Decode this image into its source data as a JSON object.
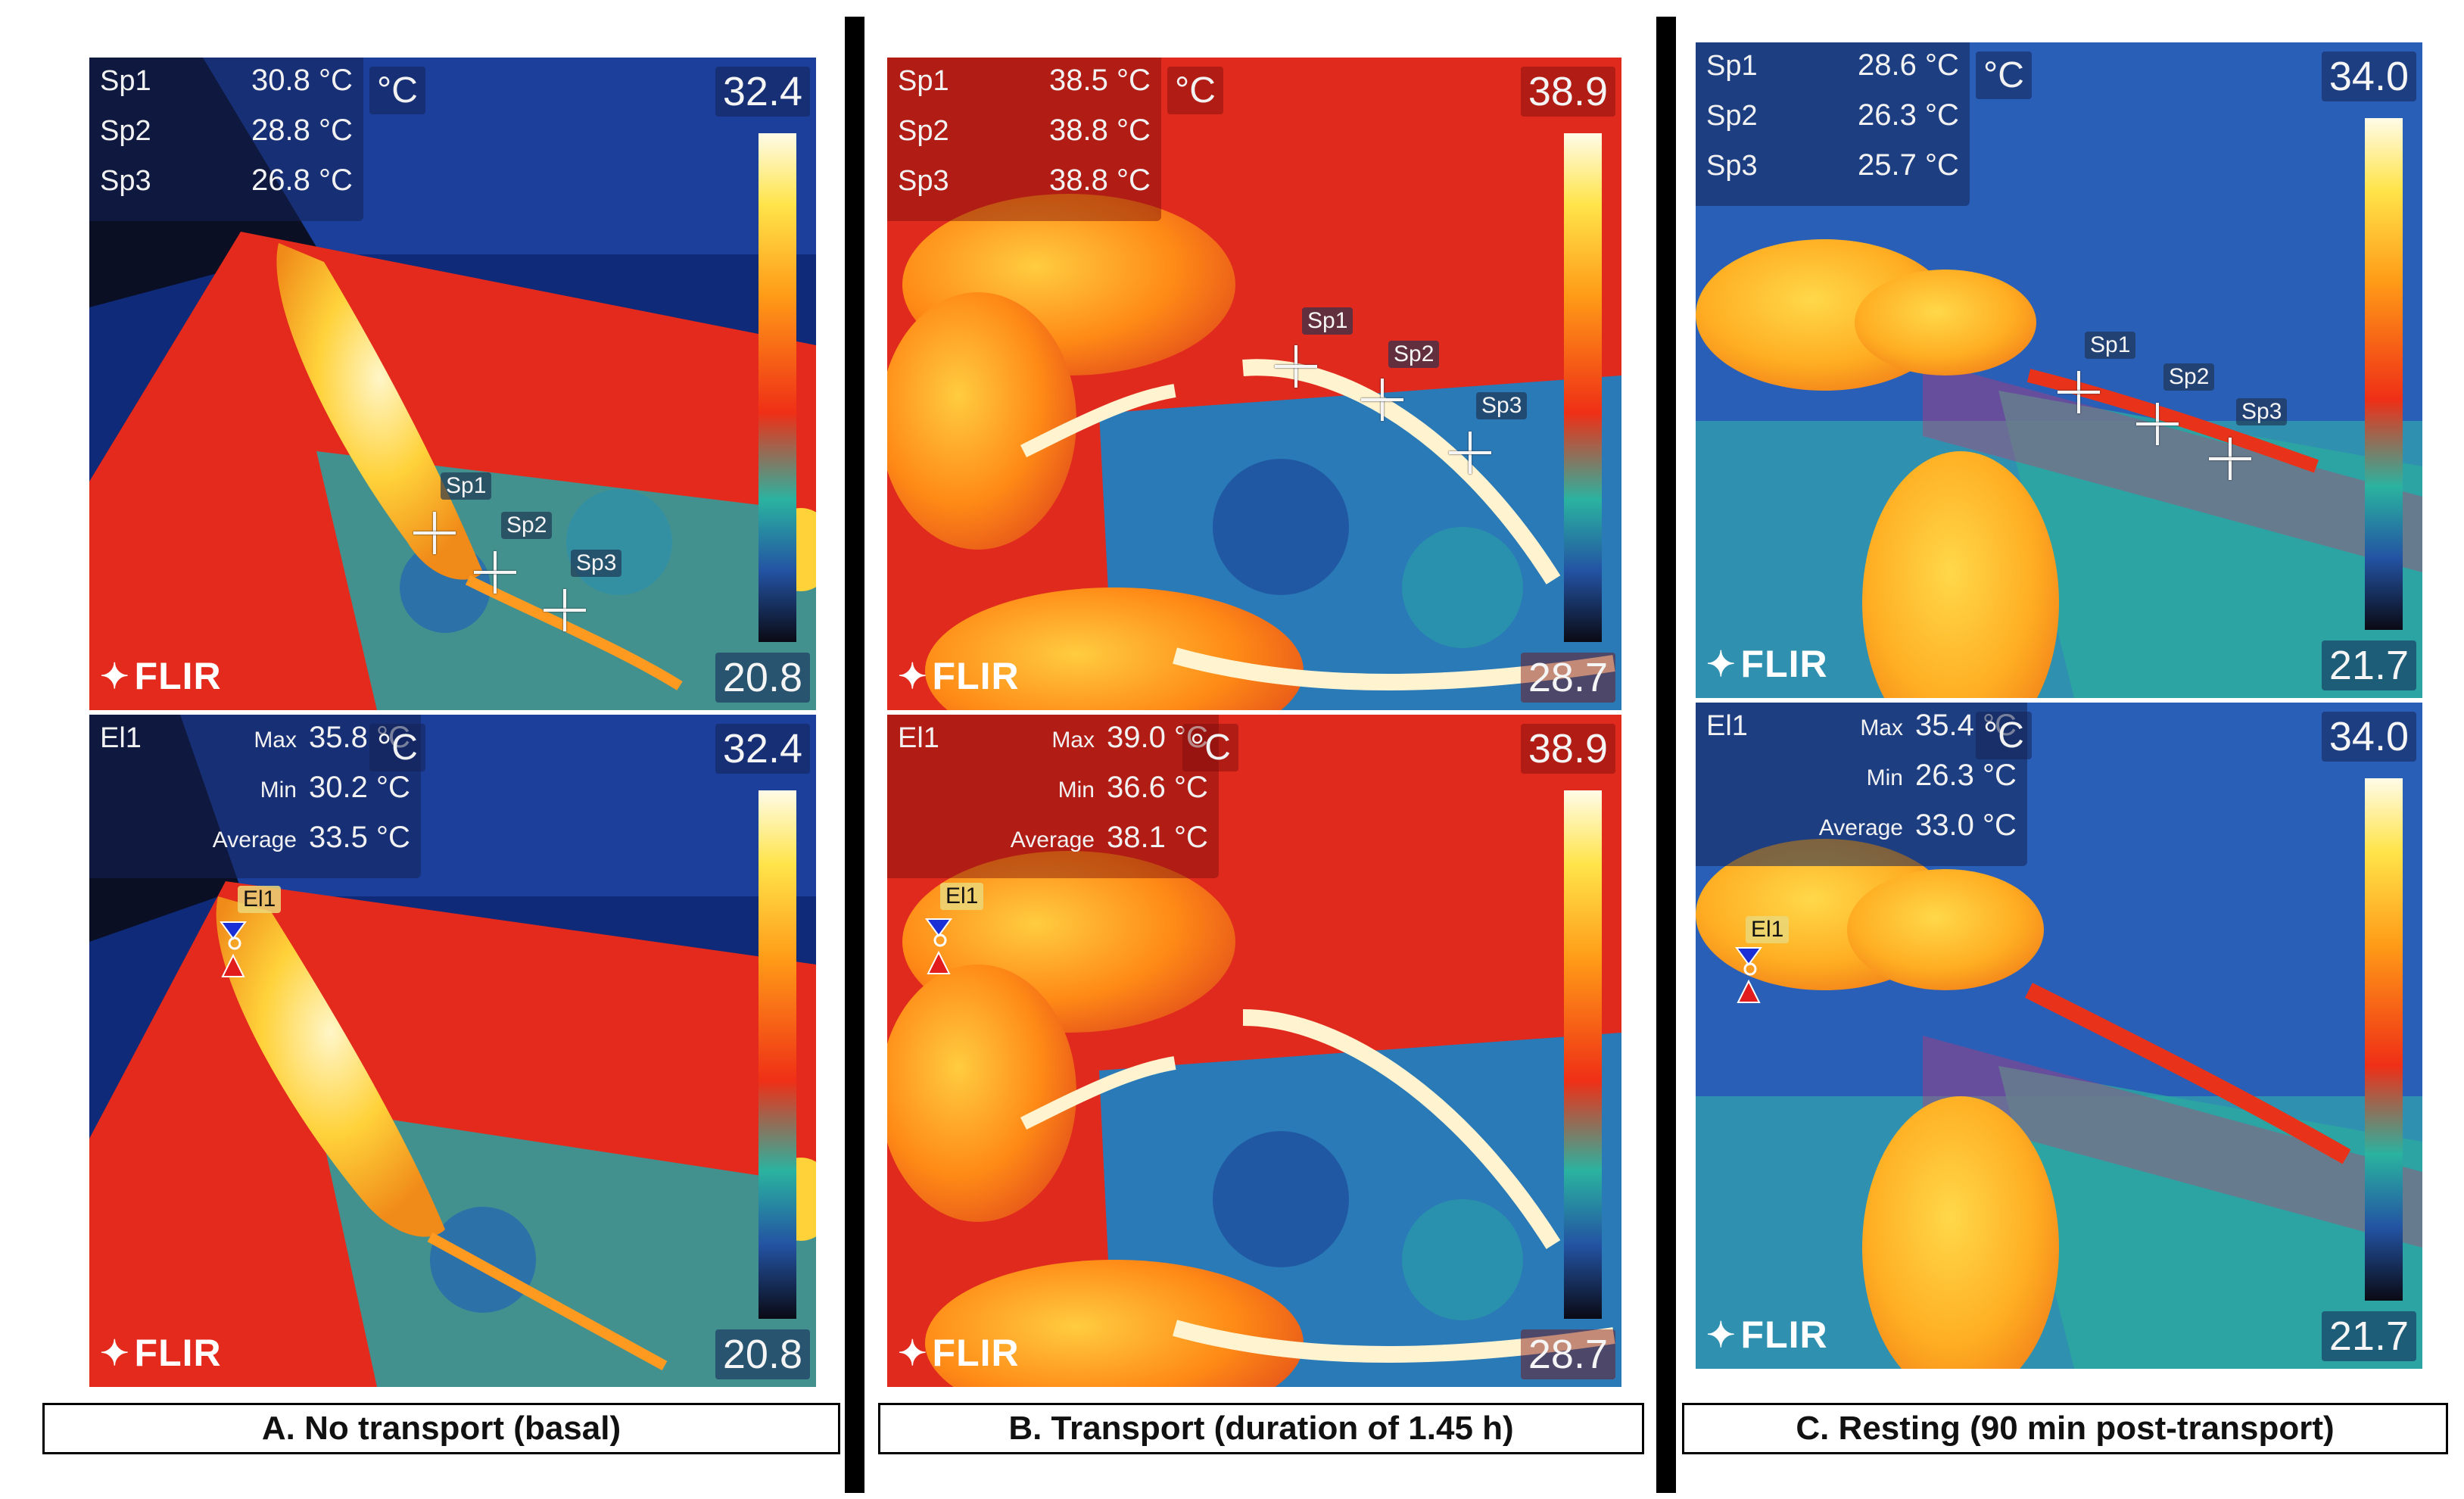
{
  "colors": {
    "cold": "#1f4fa0",
    "mid": "#e83418",
    "hot": "#ffd53a",
    "bg_red": "#e02a1e"
  },
  "icons": [
    "flir-logo-icon",
    "spot-crosshair-icon",
    "ellipse-marker-icon"
  ],
  "columns": [
    {
      "caption": "A. No transport (basal)",
      "top": {
        "spots": [
          {
            "name": "Sp1",
            "value": "30.8 °C"
          },
          {
            "name": "Sp2",
            "value": "28.8 °C"
          },
          {
            "name": "Sp3",
            "value": "26.8 °C"
          }
        ],
        "unit": "°C",
        "scale_max": "32.4",
        "scale_min": "20.8",
        "brand": "FLIR",
        "markers": [
          "Sp1",
          "Sp2",
          "Sp3"
        ]
      },
      "bottom": {
        "ellipse": {
          "name": "El1",
          "max_label": "Max",
          "max_value": "35.8 °C",
          "min_label": "Min",
          "min_value": "30.2 °C",
          "avg_label": "Average",
          "avg_value": "33.5 °C"
        },
        "unit": "°C",
        "scale_max": "32.4",
        "scale_min": "20.8",
        "brand": "FLIR",
        "marker": "El1"
      }
    },
    {
      "caption": "B. Transport (duration of 1.45 h)",
      "top": {
        "spots": [
          {
            "name": "Sp1",
            "value": "38.5 °C"
          },
          {
            "name": "Sp2",
            "value": "38.8 °C"
          },
          {
            "name": "Sp3",
            "value": "38.8 °C"
          }
        ],
        "unit": "°C",
        "scale_max": "38.9",
        "scale_min": "28.7",
        "brand": "FLIR",
        "markers": [
          "Sp1",
          "Sp2",
          "Sp3"
        ]
      },
      "bottom": {
        "ellipse": {
          "name": "El1",
          "max_label": "Max",
          "max_value": "39.0 °C",
          "min_label": "Min",
          "min_value": "36.6 °C",
          "avg_label": "Average",
          "avg_value": "38.1 °C"
        },
        "unit": "°C",
        "scale_max": "38.9",
        "scale_min": "28.7",
        "brand": "FLIR",
        "marker": "El1"
      }
    },
    {
      "caption": "C. Resting (90 min post-transport)",
      "top": {
        "spots": [
          {
            "name": "Sp1",
            "value": "28.6 °C"
          },
          {
            "name": "Sp2",
            "value": "26.3 °C"
          },
          {
            "name": "Sp3",
            "value": "25.7 °C"
          }
        ],
        "unit": "°C",
        "scale_max": "34.0",
        "scale_min": "21.7",
        "brand": "FLIR",
        "markers": [
          "Sp1",
          "Sp2",
          "Sp3"
        ]
      },
      "bottom": {
        "ellipse": {
          "name": "El1",
          "max_label": "Max",
          "max_value": "35.4 °C",
          "min_label": "Min",
          "min_value": "26.3 °C",
          "avg_label": "Average",
          "avg_value": "33.0 °C"
        },
        "unit": "°C",
        "scale_max": "34.0",
        "scale_min": "21.7",
        "brand": "FLIR",
        "marker": "El1"
      }
    }
  ]
}
